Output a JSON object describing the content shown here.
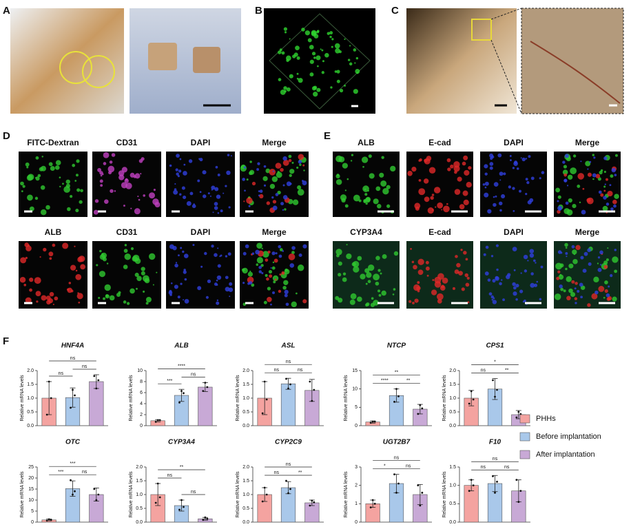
{
  "panel_labels": [
    "A",
    "B",
    "C",
    "D",
    "E",
    "F"
  ],
  "panel_d": {
    "row1": [
      "FITC-Dextran",
      "CD31",
      "DAPI",
      "Merge"
    ],
    "row2": [
      "ALB",
      "CD31",
      "DAPI",
      "Merge"
    ]
  },
  "panel_e": {
    "row1": [
      "ALB",
      "E-cad",
      "DAPI",
      "Merge"
    ],
    "row2": [
      "CYP3A4",
      "E-cad",
      "DAPI",
      "Merge"
    ]
  },
  "chart_data": [
    {
      "type": "bar",
      "title": "HNF4A",
      "ylabel": "Relative mRNA levels",
      "categories": [
        "PHHs",
        "Before implantation",
        "After implantation"
      ],
      "colors": [
        "#f4a3a0",
        "#a9c8ea",
        "#c8a9d6"
      ],
      "values": [
        1.0,
        1.02,
        1.6
      ],
      "errors": [
        0.6,
        0.35,
        0.25
      ],
      "points": [
        [
          0.4,
          1.6,
          1.0
        ],
        [
          0.65,
          1.3,
          1.1
        ],
        [
          1.8,
          1.35,
          1.65
        ]
      ],
      "significance": [
        "ns",
        "ns",
        "ns"
      ],
      "ylim": [
        0,
        2
      ],
      "yticks": [
        {
          "value": 0,
          "label": "0.0"
        },
        0.5,
        {
          "value": 1,
          "label": "1.0"
        },
        1.5,
        {
          "value": 2,
          "label": "2.0"
        }
      ]
    },
    {
      "type": "bar",
      "title": "ALB",
      "ylabel": "Relative mRNA levels",
      "categories": [
        "PHHs",
        "Before implantation",
        "After implantation"
      ],
      "colors": [
        "#f4a3a0",
        "#a9c8ea",
        "#c8a9d6"
      ],
      "values": [
        0.9,
        5.5,
        7.0
      ],
      "errors": [
        0.2,
        1.1,
        0.8
      ],
      "points": [
        [
          0.7,
          1.0,
          1.0
        ],
        [
          4.2,
          6.3,
          5.9
        ],
        [
          6.3,
          7.8,
          7.0
        ]
      ],
      "significance": [
        "***",
        "ns",
        "****"
      ],
      "ylim": [
        0,
        10
      ],
      "yticks": [
        0,
        2,
        4,
        6,
        8,
        10
      ]
    },
    {
      "type": "bar",
      "title": "ASL",
      "ylabel": "Relative mRNA levels",
      "categories": [
        "PHHs",
        "Before implantation",
        "After implantation"
      ],
      "colors": [
        "#f4a3a0",
        "#a9c8ea",
        "#c8a9d6"
      ],
      "values": [
        1.0,
        1.52,
        1.28
      ],
      "errors": [
        0.6,
        0.2,
        0.4
      ],
      "points": [
        [
          0.45,
          1.6,
          0.95
        ],
        [
          1.7,
          1.35,
          1.5
        ],
        [
          1.6,
          0.9,
          1.3
        ]
      ],
      "significance": [
        "ns",
        "ns",
        "ns"
      ],
      "ylim": [
        0,
        2
      ],
      "yticks": [
        {
          "value": 0,
          "label": "0.0"
        },
        0.5,
        {
          "value": 1,
          "label": "1.0"
        },
        1.5,
        {
          "value": 2,
          "label": "2.0"
        }
      ]
    },
    {
      "type": "bar",
      "title": "NTCP",
      "ylabel": "Relative mRNA levels",
      "categories": [
        "PHHs",
        "Before implantation",
        "After implantation"
      ],
      "colors": [
        "#f4a3a0",
        "#a9c8ea",
        "#c8a9d6"
      ],
      "values": [
        1.0,
        8.2,
        4.5
      ],
      "errors": [
        0.3,
        1.8,
        1.3
      ],
      "points": [
        [
          0.8,
          1.1,
          1.1
        ],
        [
          6.5,
          10.0,
          8.0
        ],
        [
          3.2,
          5.6,
          4.7
        ]
      ],
      "significance": [
        "****",
        "**",
        "**"
      ],
      "ylim": [
        0,
        15
      ],
      "yticks": [
        0,
        5,
        10,
        15
      ]
    },
    {
      "type": "bar",
      "title": "CPS1",
      "ylabel": "Relative mRNA levels",
      "categories": [
        "PHHs",
        "Before implantation",
        "After implantation"
      ],
      "colors": [
        "#f4a3a0",
        "#a9c8ea",
        "#c8a9d6"
      ],
      "values": [
        1.0,
        1.33,
        0.4
      ],
      "errors": [
        0.28,
        0.38,
        0.15
      ],
      "points": [
        [
          0.8,
          1.25,
          0.95
        ],
        [
          1.65,
          1.05,
          1.3
        ],
        [
          0.3,
          0.5,
          0.42
        ]
      ],
      "significance": [
        "ns",
        "**",
        "*"
      ],
      "ylim": [
        0,
        2
      ],
      "yticks": [
        {
          "value": 0,
          "label": "0.0"
        },
        0.5,
        {
          "value": 1,
          "label": "1.0"
        },
        1.5,
        {
          "value": 2,
          "label": "2.0"
        }
      ]
    },
    {
      "type": "bar",
      "title": "OTC",
      "ylabel": "Relative mRNA levels",
      "categories": [
        "PHHs",
        "Before implantation",
        "After implantation"
      ],
      "colors": [
        "#f4a3a0",
        "#a9c8ea",
        "#c8a9d6"
      ],
      "values": [
        1.0,
        15.2,
        12.5
      ],
      "errors": [
        0.4,
        3.5,
        3.0
      ],
      "points": [
        [
          0.7,
          1.3,
          1.0
        ],
        [
          19.0,
          12.5,
          14.0
        ],
        [
          15.0,
          10.0,
          12.5
        ]
      ],
      "significance": [
        "***",
        "ns",
        "***"
      ],
      "ylim": [
        0,
        25
      ],
      "yticks": [
        0,
        5,
        10,
        15,
        20,
        25
      ]
    },
    {
      "type": "bar",
      "title": "CYP3A4",
      "ylabel": "Relative mRNA levels",
      "categories": [
        "PHHs",
        "Before implantation",
        "After implantation"
      ],
      "colors": [
        "#f4a3a0",
        "#a9c8ea",
        "#c8a9d6"
      ],
      "values": [
        1.0,
        0.6,
        0.12
      ],
      "errors": [
        0.4,
        0.2,
        0.05
      ],
      "points": [
        [
          0.7,
          1.4,
          0.9
        ],
        [
          0.45,
          0.8,
          0.55
        ],
        [
          0.08,
          0.17,
          0.12
        ]
      ],
      "significance": [
        "ns",
        "ns",
        "**"
      ],
      "ylim": [
        0,
        2
      ],
      "yticks": [
        {
          "value": 0,
          "label": "0.0"
        },
        0.5,
        {
          "value": 1,
          "label": "1.0"
        },
        1.5,
        {
          "value": 2,
          "label": "2.0"
        }
      ]
    },
    {
      "type": "bar",
      "title": "CYP2C9",
      "ylabel": "Relative mRNA levels",
      "categories": [
        "PHHs",
        "Before implantation",
        "After implantation"
      ],
      "colors": [
        "#f4a3a0",
        "#a9c8ea",
        "#c8a9d6"
      ],
      "values": [
        1.0,
        1.25,
        0.7
      ],
      "errors": [
        0.25,
        0.22,
        0.1
      ],
      "points": [
        [
          0.75,
          1.25,
          1.0
        ],
        [
          1.5,
          1.05,
          1.2
        ],
        [
          0.6,
          0.78,
          0.72
        ]
      ],
      "significance": [
        "ns",
        "**",
        "ns"
      ],
      "ylim": [
        0,
        2
      ],
      "yticks": [
        {
          "value": 0,
          "label": "0.0"
        },
        0.5,
        {
          "value": 1,
          "label": "1.0"
        },
        1.5,
        {
          "value": 2,
          "label": "2.0"
        }
      ]
    },
    {
      "type": "bar",
      "title": "UGT2B7",
      "ylabel": "Relative mRNA levels",
      "categories": [
        "PHHs",
        "Before implantation",
        "After implantation"
      ],
      "colors": [
        "#f4a3a0",
        "#a9c8ea",
        "#c8a9d6"
      ],
      "values": [
        1.0,
        2.1,
        1.5
      ],
      "errors": [
        0.2,
        0.5,
        0.55
      ],
      "points": [
        [
          0.8,
          1.2,
          1.0
        ],
        [
          2.6,
          1.6,
          2.1
        ],
        [
          2.0,
          0.9,
          1.6
        ]
      ],
      "significance": [
        "*",
        "ns",
        "ns"
      ],
      "ylim": [
        0,
        3
      ],
      "yticks": [
        0,
        1,
        2,
        3
      ]
    },
    {
      "type": "bar",
      "title": "F10",
      "ylabel": "Relative mRNA levels",
      "categories": [
        "PHHs",
        "Before implantation",
        "After implantation"
      ],
      "colors": [
        "#f4a3a0",
        "#a9c8ea",
        "#c8a9d6"
      ],
      "values": [
        1.0,
        1.05,
        0.85
      ],
      "errors": [
        0.15,
        0.22,
        0.3
      ],
      "points": [
        [
          0.85,
          1.15,
          1.0
        ],
        [
          1.25,
          0.8,
          1.1
        ],
        [
          1.15,
          0.55,
          0.85
        ]
      ],
      "significance": [
        "ns",
        "ns",
        "ns"
      ],
      "ylim": [
        0,
        1.5
      ],
      "yticks": [
        {
          "value": 0,
          "label": "0.0"
        },
        0.5,
        {
          "value": 1,
          "label": "1.0"
        },
        1.5
      ]
    }
  ]
}
